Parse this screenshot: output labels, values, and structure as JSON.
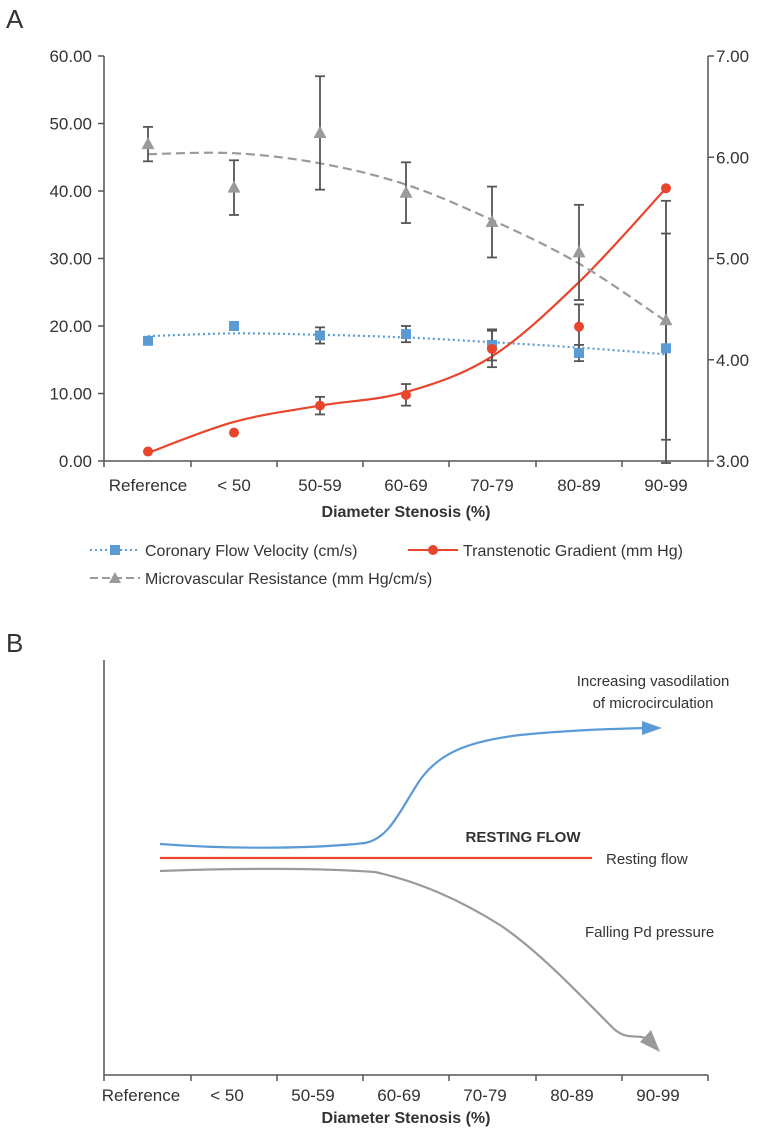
{
  "panel_a": {
    "letter": "A",
    "chart_data": {
      "type": "line",
      "categories": [
        "Reference",
        "< 50",
        "50-59",
        "60-69",
        "70-79",
        "80-89",
        "90-99"
      ],
      "xlabel": "Diameter Stenosis (%)",
      "y_left": {
        "ticks": [
          "0.00",
          "10.00",
          "20.00",
          "30.00",
          "40.00",
          "50.00",
          "60.00"
        ],
        "min": 0,
        "max": 60
      },
      "y_right": {
        "ticks": [
          "3.00",
          "4.00",
          "5.00",
          "6.00",
          "7.00"
        ],
        "min": 3,
        "max": 7
      },
      "grid": false,
      "legend_position": "bottom",
      "series": [
        {
          "name": "Coronary Flow Velocity (cm/s)",
          "axis": "left",
          "marker": "square",
          "line": "dotted",
          "color": "#5b9bd5",
          "values": [
            17.8,
            20.0,
            18.6,
            18.8,
            17.2,
            16.0,
            16.7
          ],
          "error": [
            null,
            null,
            1.2,
            1.2,
            2.3,
            1.2,
            17.0
          ],
          "trend": [
            18.5,
            18.9,
            18.7,
            18.3,
            17.6,
            16.8,
            15.8
          ]
        },
        {
          "name": "Transtenotic Gradient (mm Hg)",
          "axis": "left",
          "marker": "circle",
          "line": "solid",
          "color": "#e8452c",
          "values": [
            1.4,
            4.2,
            8.2,
            9.8,
            16.6,
            19.9,
            40.4
          ],
          "error": [
            null,
            null,
            1.3,
            1.6,
            2.7,
            3.3,
            null
          ],
          "trend": [
            1.2,
            5.8,
            8.2,
            10.2,
            15.5,
            26.5,
            40.4
          ]
        },
        {
          "name": "Microvascular Resistance (mm Hg/cm/s)",
          "axis": "right",
          "marker": "triangle",
          "line": "dashed",
          "color": "#9a9a9a",
          "values": [
            6.13,
            5.7,
            6.24,
            5.65,
            5.36,
            5.06,
            4.39
          ],
          "error": [
            0.17,
            0.27,
            0.56,
            0.3,
            0.35,
            0.47,
            1.18
          ],
          "trend": [
            6.03,
            6.04,
            5.94,
            5.73,
            5.38,
            4.95,
            4.38
          ]
        }
      ]
    }
  },
  "panel_b": {
    "letter": "B",
    "chart_data": {
      "type": "line",
      "categories": [
        "Reference",
        "< 50",
        "50-59",
        "60-69",
        "70-79",
        "80-89",
        "90-99"
      ],
      "xlabel": "Diameter Stenosis (%)",
      "series_labels": {
        "vasodilation_line1": "Increasing vasodilation",
        "vasodilation_line2": "of microcirculation",
        "resting_title": "RESTING FLOW",
        "resting": "Resting flow",
        "pressure": "Falling Pd pressure"
      },
      "colors": {
        "vasodilation": "#5b9bd5",
        "resting": "#e8452c",
        "pressure": "#9a9a9a"
      }
    }
  }
}
